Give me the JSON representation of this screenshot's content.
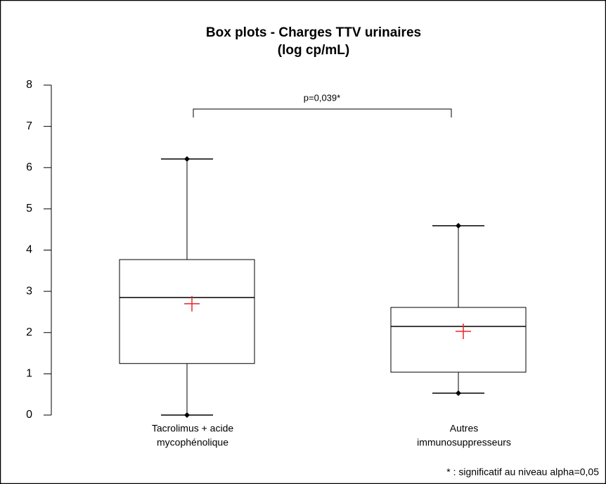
{
  "chart_data": {
    "type": "box",
    "title": [
      "Box plots - Charges TTV urinaires",
      "(log cp/mL)"
    ],
    "categories": [
      [
        "Tacrolimus + acide",
        "mycophénolique"
      ],
      [
        "Autres",
        "immunosuppresseurs"
      ]
    ],
    "boxes": [
      {
        "min": 0,
        "q1": 1.25,
        "median": 2.85,
        "q3": 3.77,
        "max": 6.21,
        "mean": 2.7
      },
      {
        "min": 0.53,
        "q1": 1.04,
        "median": 2.15,
        "q3": 2.61,
        "max": 4.59,
        "mean": 2.03
      }
    ],
    "color": "#000000",
    "mean_color": "#e8262a",
    "ylim": [
      0,
      8
    ],
    "yticks": [
      0,
      1,
      2,
      3,
      4,
      5,
      6,
      7,
      8
    ],
    "grid": false,
    "annotation": "p=0,039*",
    "footnote": "* : significatif au niveau alpha=0,05"
  }
}
